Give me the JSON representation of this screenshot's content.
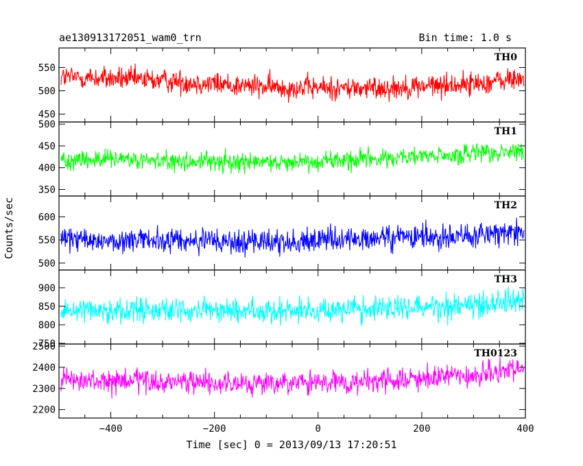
{
  "header": {
    "title": "ae130913172051_wam0_trn",
    "bin_time": "Bin time: 1.0 s"
  },
  "chart_data": {
    "type": "line",
    "xlabel": "Time [sec] 0 = 2013/09/13 17:20:51",
    "ylabel": "Counts/sec",
    "xlim": [
      -500,
      400
    ],
    "x_ticks": [
      -400,
      -200,
      0,
      200,
      400
    ],
    "x_tick_labels": [
      "−400",
      "−200",
      "0",
      "200",
      "400"
    ],
    "panels": [
      {
        "label": "TH0",
        "color": "#ff0000",
        "ylim": [
          433,
          592
        ],
        "y_ticks": [
          450,
          500,
          550
        ],
        "y_tick_labels": [
          "450",
          "500",
          "550"
        ],
        "trend": {
          "x": [
            -500,
            -300,
            -100,
            100,
            300,
            400
          ],
          "y": [
            530,
            522,
            508,
            505,
            515,
            527
          ]
        },
        "noise_sigma": 22
      },
      {
        "label": "TH1",
        "color": "#00ff00",
        "ylim": [
          335,
          505
        ],
        "y_ticks": [
          350,
          400,
          450,
          500
        ],
        "y_tick_labels": [
          "350",
          "400",
          "450",
          "500"
        ],
        "trend": {
          "x": [
            -500,
            -300,
            -100,
            100,
            300,
            400
          ],
          "y": [
            420,
            415,
            412,
            420,
            430,
            438
          ]
        },
        "noise_sigma": 20
      },
      {
        "label": "TH2",
        "color": "#0000ff",
        "ylim": [
          485,
          645
        ],
        "y_ticks": [
          500,
          550,
          600
        ],
        "y_tick_labels": [
          "500",
          "550",
          "600"
        ],
        "trend": {
          "x": [
            -500,
            -300,
            -100,
            100,
            300,
            400
          ],
          "y": [
            550,
            548,
            545,
            552,
            560,
            568
          ]
        },
        "noise_sigma": 24
      },
      {
        "label": "TH3",
        "color": "#00ffff",
        "ylim": [
          748,
          948
        ],
        "y_ticks": [
          750,
          800,
          850,
          900
        ],
        "y_tick_labels": [
          "750",
          "800",
          "850",
          "900"
        ],
        "trend": {
          "x": [
            -500,
            -300,
            -100,
            100,
            300,
            400
          ],
          "y": [
            842,
            840,
            838,
            842,
            855,
            868
          ]
        },
        "noise_sigma": 30
      },
      {
        "label": "TH0123",
        "color": "#ff00ff",
        "ylim": [
          2160,
          2510
        ],
        "y_ticks": [
          2200,
          2300,
          2400,
          2500
        ],
        "y_tick_labels": [
          "2200",
          "2300",
          "2400",
          "2500"
        ],
        "trend": {
          "x": [
            -500,
            -300,
            -100,
            100,
            300,
            400
          ],
          "y": [
            2335,
            2330,
            2320,
            2330,
            2360,
            2395
          ]
        },
        "noise_sigma": 48
      }
    ]
  }
}
